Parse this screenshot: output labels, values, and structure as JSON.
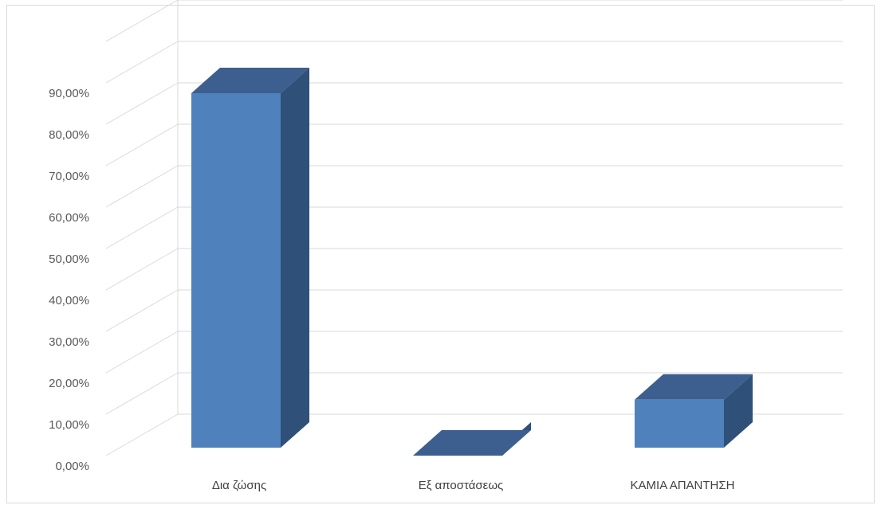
{
  "chart_data": {
    "type": "bar",
    "style": "3d-column",
    "categories": [
      "Δια ζώσης",
      "Εξ αποστάσεως",
      "ΚΑΜΙΑ ΑΠΑΝΤΗΣΗ"
    ],
    "series": [
      {
        "values": [
          87.5,
          0.0,
          13.5
        ]
      }
    ],
    "title": "",
    "xlabel": "",
    "ylabel": "",
    "ylim": [
      0,
      90
    ],
    "ytick_labels": [
      "0,00%",
      "10,00%",
      "20,00%",
      "30,00%",
      "40,00%",
      "50,00%",
      "60,00%",
      "70,00%",
      "80,00%",
      "90,00%"
    ],
    "grid": true,
    "legend": "none",
    "colors": {
      "front": "#4f81bd",
      "top": "#3c5f8f",
      "side": "#2f5079",
      "grid": "#d9d9d9"
    }
  }
}
